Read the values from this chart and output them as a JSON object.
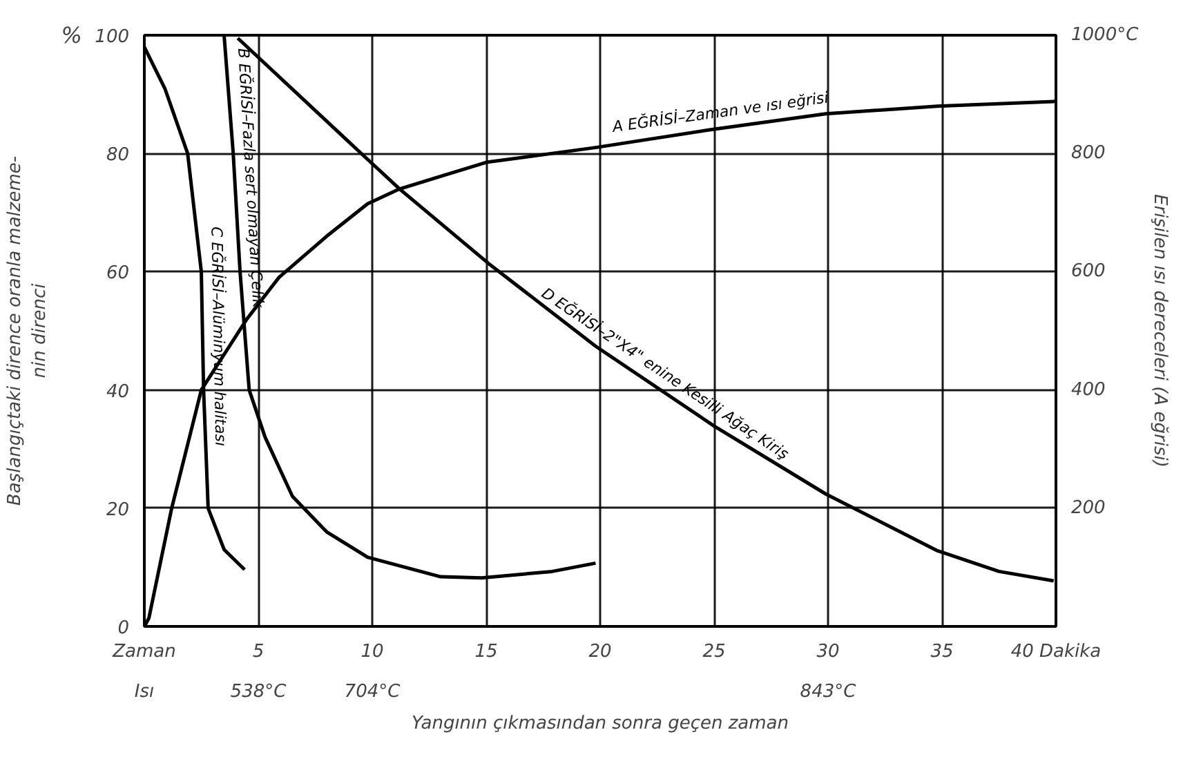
{
  "chart_data": {
    "type": "line",
    "xlabel": "Yangının çıkmasından sonra geçen zaman",
    "ylabel": "Başlangıçtaki dirence oranla malzeme-\nnin direnci",
    "y2label": "Erişilen ısı dereceleri (A eğrisi)",
    "annotations": [
      "%",
      "Isı",
      "538°C",
      "704°C",
      "843°C"
    ],
    "xlim": [
      0,
      40
    ],
    "xticks": [
      {
        "value": 0,
        "label": "Zaman"
      },
      5,
      10,
      15,
      20,
      25,
      30,
      35,
      {
        "value": 40,
        "label": "40 Dakika"
      }
    ],
    "ylim": [
      0,
      100
    ],
    "yticks": [
      0,
      20,
      40,
      60,
      80,
      100
    ],
    "y2lim": [
      0,
      1000
    ],
    "y2ticks": [
      200,
      400,
      600,
      800,
      {
        "value": 1000,
        "label": "1000°C"
      }
    ],
    "grid": true,
    "line_style": "solid",
    "series": [
      {
        "name": "A EĞRİSİ–Zaman ve ısı eğrisi",
        "color": "#000000",
        "axis": "y2",
        "x": [
          0,
          0.2,
          1.2,
          2.5,
          4.5,
          5.9,
          8,
          9.8,
          11.2,
          15,
          19.8,
          24.8,
          29.9,
          34.8,
          40
        ],
        "values": [
          0,
          14,
          200,
          400,
          520,
          590,
          660,
          715,
          740,
          785,
          810,
          840,
          867,
          880,
          888
        ]
      },
      {
        "name": "B EĞRİSİ–Fazla sert olmayan Çelik",
        "color": "#000000",
        "x": [
          3.5,
          3.9,
          4.2,
          4.6,
          5.3,
          6.5,
          8,
          9.8,
          13,
          14.8,
          17.9,
          19.8
        ],
        "values": [
          100,
          80,
          60,
          40,
          32,
          22,
          16,
          11.7,
          8.4,
          8.2,
          9.3,
          10.7
        ]
      },
      {
        "name": "C EĞRİSİ–Alüminyum halitası",
        "color": "#000000",
        "x": [
          0,
          0.9,
          1.9,
          2.5,
          2.6,
          2.8,
          3.5,
          4.4
        ],
        "values": [
          98,
          91,
          80,
          60,
          40,
          20,
          13,
          9.6
        ]
      },
      {
        "name": "D EĞRİSİ–2\"X4\" enine Kesilli Ağaç Kiriş",
        "color": "#000000",
        "x": [
          4.1,
          9.6,
          11.2,
          15.1,
          19.8,
          25,
          29.9,
          34.8,
          37.5,
          39.9
        ],
        "values": [
          99.5,
          79.7,
          74,
          61.4,
          47.4,
          33.9,
          22.4,
          12.8,
          9.3,
          7.7
        ]
      }
    ]
  }
}
